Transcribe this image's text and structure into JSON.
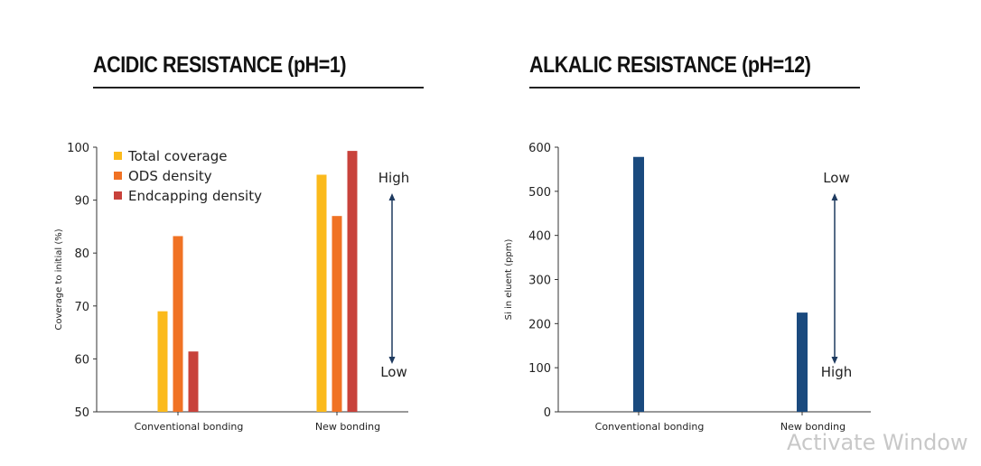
{
  "chart_data": [
    {
      "type": "bar",
      "title": "ACIDIC RESISTANCE (pH=1)",
      "xlabel": "",
      "ylabel": "Coverage to initial (%)",
      "ylim": [
        50,
        100
      ],
      "yticks": [
        50,
        60,
        70,
        80,
        90,
        100
      ],
      "categories": [
        "Conventional bonding",
        "New bonding"
      ],
      "series": [
        {
          "name": "Total coverage",
          "color": "#FBBA1C",
          "values": [
            69,
            94.8
          ]
        },
        {
          "name": "ODS density",
          "color": "#F07224",
          "values": [
            83.2,
            87
          ]
        },
        {
          "name": "Endcapping density",
          "color": "#C8423B",
          "values": [
            61.4,
            99.3
          ]
        }
      ],
      "legend": "top-left",
      "grid": false,
      "annotation": {
        "top_label": "High",
        "bottom_label": "Low"
      }
    },
    {
      "type": "bar",
      "title": "ALKALIC RESISTANCE (pH=12)",
      "xlabel": "",
      "ylabel": "Si in eluent (ppm)",
      "ylim": [
        0,
        600
      ],
      "yticks": [
        0,
        100,
        200,
        300,
        400,
        500,
        600
      ],
      "categories": [
        "Conventional bonding",
        "New bonding"
      ],
      "series": [
        {
          "color": "#1A4A7E",
          "values": [
            578,
            225
          ]
        }
      ],
      "grid": false,
      "annotation": {
        "top_label": "Low",
        "bottom_label": "High"
      }
    }
  ],
  "watermark": "Activate Window"
}
